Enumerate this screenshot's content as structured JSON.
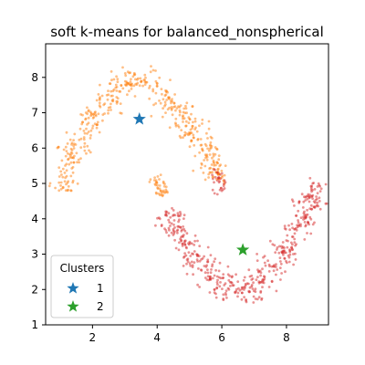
{
  "chart_data": {
    "type": "scatter",
    "title": "soft k-means for balanced_nonspherical",
    "xlabel": "",
    "ylabel": "",
    "xlim": [
      0.55,
      9.3
    ],
    "ylim": [
      1.0,
      8.95
    ],
    "xticks": [
      2,
      4,
      6,
      8
    ],
    "yticks": [
      1,
      2,
      3,
      4,
      5,
      6,
      7,
      8
    ],
    "xtick_labels": [
      "2",
      "4",
      "6",
      "8"
    ],
    "ytick_labels": [
      "1",
      "2",
      "3",
      "4",
      "5",
      "6",
      "7",
      "8"
    ],
    "grid": false,
    "legend": {
      "title": "Clusters",
      "placement": "lower-left",
      "entries": [
        {
          "label": "1",
          "color": "#1f77b4",
          "marker": "star"
        },
        {
          "label": "2",
          "color": "#2ca02c",
          "marker": "star"
        }
      ]
    },
    "series": [
      {
        "color": "#ff7f0e",
        "marker": "point",
        "shape": "upper arc, x from about 1.1 to 5.9, peak y about 8.0 near x 3.2",
        "count": 520,
        "upper_arc_trace": [
          [
            1.1,
            4.8
          ],
          [
            1.3,
            5.7
          ],
          [
            1.6,
            6.2
          ],
          [
            2.0,
            6.8
          ],
          [
            2.5,
            7.4
          ],
          [
            3.0,
            7.9
          ],
          [
            3.5,
            8.0
          ],
          [
            4.0,
            7.7
          ],
          [
            4.5,
            7.2
          ],
          [
            5.0,
            6.6
          ],
          [
            5.5,
            6.0
          ],
          [
            5.8,
            5.4
          ],
          [
            5.9,
            5.0
          ]
        ],
        "lower_tail": [
          [
            3.9,
            5.2
          ],
          [
            4.2,
            4.6
          ]
        ]
      },
      {
        "color": "#d62728",
        "marker": "point",
        "shape": "lower arc, x from about 4.3 to 9.0, trough y about 2.0 near x 6.5",
        "count": 520,
        "lower_arc_trace": [
          [
            4.3,
            4.2
          ],
          [
            4.8,
            3.3
          ],
          [
            5.3,
            2.8
          ],
          [
            5.8,
            2.3
          ],
          [
            6.3,
            2.0
          ],
          [
            6.8,
            2.0
          ],
          [
            7.3,
            2.2
          ],
          [
            7.8,
            2.8
          ],
          [
            8.3,
            3.6
          ],
          [
            8.7,
            4.3
          ],
          [
            9.0,
            5.0
          ]
        ],
        "upper_fragment": [
          [
            5.8,
            5.4
          ],
          [
            6.0,
            4.8
          ]
        ]
      }
    ],
    "centroids": [
      {
        "label": "1",
        "x": 3.45,
        "y": 6.82,
        "color": "#1f77b4",
        "marker": "star"
      },
      {
        "label": "2",
        "x": 6.65,
        "y": 3.12,
        "color": "#2ca02c",
        "marker": "star"
      }
    ]
  }
}
